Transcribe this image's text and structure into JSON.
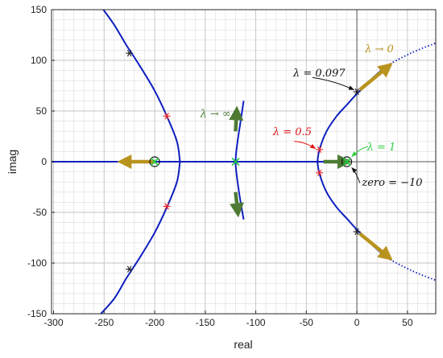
{
  "chart_data": {
    "type": "line",
    "xlabel": "real",
    "ylabel": "imag",
    "xlim": [
      -302,
      78
    ],
    "ylim": [
      -150,
      150
    ],
    "xticks": [
      -300,
      -250,
      -200,
      -150,
      -100,
      -50,
      0,
      50
    ],
    "yticks": [
      -150,
      -100,
      -50,
      0,
      50,
      100,
      150
    ],
    "xticklabels": [
      "-300",
      "-250",
      "-200",
      "-150",
      "-100",
      "-50",
      "0",
      "50"
    ],
    "yticklabels": [
      "-150",
      "-100",
      "-50",
      "0",
      "50",
      "100",
      "150"
    ],
    "grid": true,
    "colors": {
      "locus": "#0d1fbf",
      "grid": "#dcdcdc",
      "axis_zero": "#555555",
      "arrow_gold": "#b8941e",
      "arrow_green": "#4e7a34",
      "mark_black": "#222222",
      "mark_red": "#ee2222",
      "mark_green": "#22cc44",
      "text_black": "#111111",
      "text_red": "#e01010",
      "text_green": "#2ecc40",
      "text_olive": "#4e7a34",
      "text_gold": "#b8941e"
    },
    "series": [
      {
        "style": "solid",
        "x": [
          -175,
          -178,
          -188,
          -200,
          -215,
          -228,
          -240,
          -253
        ],
        "y": [
          0,
          20,
          45,
          70,
          95,
          115,
          135,
          153
        ]
      },
      {
        "style": "solid",
        "x": [
          -175,
          -178,
          -188,
          -200,
          -215,
          -228,
          -240,
          -256
        ],
        "y": [
          0,
          -20,
          -45,
          -70,
          -95,
          -115,
          -135,
          -153
        ]
      },
      {
        "style": "solid",
        "x": [
          -302,
          -175
        ],
        "y": [
          0,
          0
        ]
      },
      {
        "style": "solid",
        "x": [
          -112,
          -115,
          -118,
          -120,
          -118,
          -115,
          -112
        ],
        "y": [
          60,
          40,
          20,
          0,
          -20,
          -40,
          -57
        ]
      },
      {
        "style": "solid",
        "x": [
          -175,
          -39
        ],
        "y": [
          0,
          0
        ]
      },
      {
        "style": "solid",
        "x": [
          -39,
          -37,
          -30,
          -20,
          -10,
          0,
          15,
          30
        ],
        "y": [
          0,
          12,
          30,
          45,
          56,
          67,
          82,
          95
        ]
      },
      {
        "style": "solid",
        "x": [
          -39,
          -37,
          -30,
          -20,
          -10,
          0,
          15,
          30
        ],
        "y": [
          0,
          -12,
          -30,
          -45,
          -56,
          -67,
          -82,
          -95
        ]
      },
      {
        "style": "solid",
        "x": [
          -39,
          -10
        ],
        "y": [
          0,
          0
        ]
      },
      {
        "style": "dotted",
        "x": [
          30,
          45,
          60,
          78
        ],
        "y": [
          95,
          103,
          110,
          117
        ]
      },
      {
        "style": "dotted",
        "x": [
          30,
          45,
          60,
          78
        ],
        "y": [
          -95,
          -103,
          -110,
          -117
        ]
      }
    ],
    "open_loop_zeros": [
      {
        "x": -200,
        "y": 0
      },
      {
        "x": -10,
        "y": 0
      }
    ],
    "markers": [
      {
        "x": -225,
        "y": 107,
        "color": "black"
      },
      {
        "x": -225,
        "y": -106,
        "color": "black"
      },
      {
        "x": -188,
        "y": 45,
        "color": "red"
      },
      {
        "x": -188,
        "y": -44,
        "color": "red"
      },
      {
        "x": -200,
        "y": 0,
        "color": "green"
      },
      {
        "x": -120,
        "y": 0,
        "color": "green"
      },
      {
        "x": -37,
        "y": 12,
        "color": "red"
      },
      {
        "x": -37,
        "y": -11,
        "color": "red"
      },
      {
        "x": -10,
        "y": 0,
        "color": "green"
      },
      {
        "x": 0,
        "y": 69,
        "color": "black"
      },
      {
        "x": 0,
        "y": -69,
        "color": "black"
      }
    ],
    "arrows": [
      {
        "x1": -200,
        "y1": 0,
        "x2": -230,
        "y2": 0,
        "color": "gold"
      },
      {
        "x1": -120,
        "y1": 30,
        "x2": -119,
        "y2": 48,
        "color": "green"
      },
      {
        "x1": -120,
        "y1": -30,
        "x2": -118,
        "y2": -48,
        "color": "green"
      },
      {
        "x1": -33,
        "y1": 0,
        "x2": -12,
        "y2": 0,
        "color": "green"
      },
      {
        "x1": 3,
        "y1": 71,
        "x2": 30,
        "y2": 93,
        "color": "gold"
      },
      {
        "x1": 3,
        "y1": -71,
        "x2": 30,
        "y2": -93,
        "color": "gold"
      }
    ],
    "annotations": [
      {
        "text": "λ → 0",
        "x": 8,
        "y": 108,
        "color": "gold"
      },
      {
        "text": "λ = 0.097",
        "x": -63,
        "y": 84,
        "color": "black"
      },
      {
        "text": "λ → ∞",
        "x": -155,
        "y": 44,
        "color": "olive"
      },
      {
        "text": "λ = 0.5",
        "x": -83,
        "y": 26,
        "color": "red"
      },
      {
        "text": "λ = 1",
        "x": 10,
        "y": 11,
        "color": "green"
      },
      {
        "text": "zero = −10",
        "x": 5,
        "y": -24,
        "color": "black"
      }
    ],
    "pointers": [
      {
        "x1": -44,
        "y1": 83,
        "x2": -3,
        "y2": 71,
        "color": "black"
      },
      {
        "x1": -62,
        "y1": 20,
        "x2": -41,
        "y2": 13,
        "color": "red"
      },
      {
        "x1": 11,
        "y1": 15,
        "x2": -5,
        "y2": 5,
        "color": "green"
      },
      {
        "x1": 3,
        "y1": -21,
        "x2": -5,
        "y2": -6,
        "color": "black"
      }
    ]
  }
}
